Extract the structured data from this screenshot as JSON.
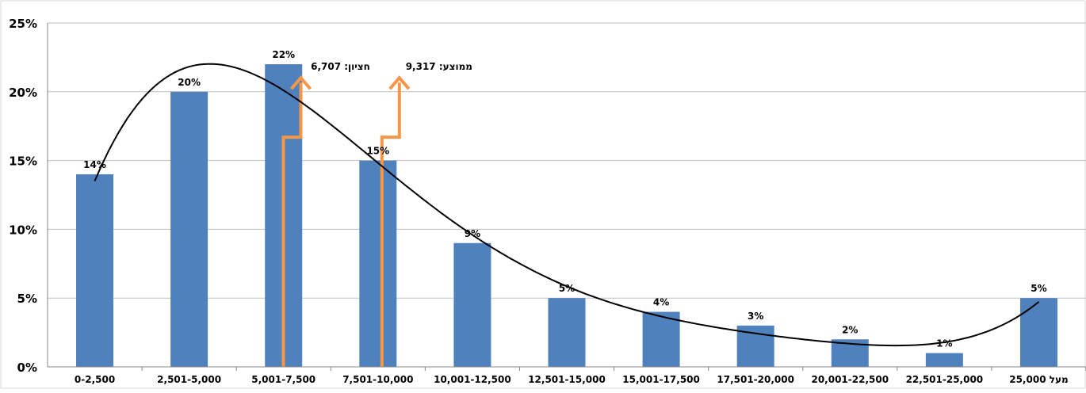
{
  "chart_data": {
    "type": "bar",
    "categories": [
      "0-2,500",
      "2,501-5,000",
      "5,001-7,500",
      "7,501-10,000",
      "10,001-12,500",
      "12,501-15,000",
      "15,001-17,500",
      "17,501-20,000",
      "20,001-22,500",
      "22,501-25,000",
      "מעל 25,000"
    ],
    "values": [
      14,
      20,
      22,
      15,
      9,
      5,
      4,
      3,
      2,
      1,
      5
    ],
    "data_labels": [
      "14%",
      "20%",
      "22%",
      "15%",
      "9%",
      "5%",
      "4%",
      "3%",
      "2%",
      "1%",
      "5%"
    ],
    "ylim": [
      0,
      25
    ],
    "y_ticks": [
      0,
      5,
      10,
      15,
      20,
      25
    ],
    "y_tick_labels": [
      "0%",
      "5%",
      "10%",
      "15%",
      "20%",
      "25%"
    ],
    "grid": true,
    "trendline": "polynomial",
    "annotations": [
      {
        "text": "חציון: 6,707",
        "value": 6707
      },
      {
        "text": "ממוצע: 9,317",
        "value": 9317
      }
    ],
    "colors": {
      "bar": "#4f81bd",
      "trendline": "#000000",
      "annotation_arrow": "#f79646",
      "grid": "#bfbfbf",
      "axis": "#868686"
    }
  }
}
